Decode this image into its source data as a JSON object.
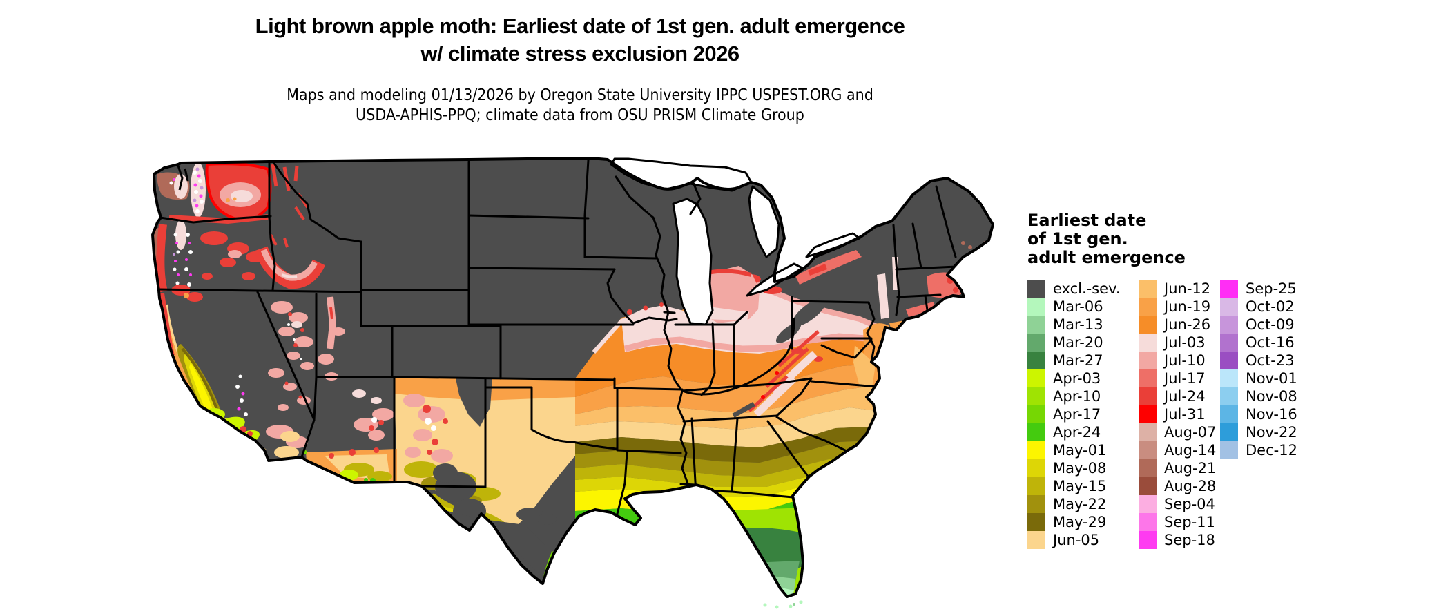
{
  "title": {
    "line1": "Light brown apple moth: Earliest date of 1st gen. adult emergence",
    "line2": "w/ climate stress exclusion 2026"
  },
  "subtitle": {
    "line1": "Maps and modeling 01/13/2026 by Oregon State University IPPC USPEST.ORG and",
    "line2": "USDA-APHIS-PPQ; climate data from OSU PRISM Climate Group"
  },
  "legend": {
    "title_line1": "Earliest date",
    "title_line2": "of 1st gen.",
    "title_line3": "adult emergence",
    "columns": [
      [
        {
          "label": "excl.-sev.",
          "color": "#4D4D4D"
        },
        {
          "label": "Mar-06",
          "color": "#B4F7BC"
        },
        {
          "label": "Mar-13",
          "color": "#8FD296"
        },
        {
          "label": "Mar-20",
          "color": "#63A96C"
        },
        {
          "label": "Mar-27",
          "color": "#38823F"
        },
        {
          "label": "Apr-03",
          "color": "#CCF500"
        },
        {
          "label": "Apr-10",
          "color": "#9FE303"
        },
        {
          "label": "Apr-17",
          "color": "#76D703"
        },
        {
          "label": "Apr-24",
          "color": "#44CB0F"
        },
        {
          "label": "May-01",
          "color": "#FCF500"
        },
        {
          "label": "May-08",
          "color": "#DDD606"
        },
        {
          "label": "May-15",
          "color": "#BFB409"
        },
        {
          "label": "May-22",
          "color": "#A1910D"
        },
        {
          "label": "May-29",
          "color": "#7A6A0A"
        },
        {
          "label": "Jun-05",
          "color": "#FBD58D"
        }
      ],
      [
        {
          "label": "Jun-12",
          "color": "#FBBF69"
        },
        {
          "label": "Jun-19",
          "color": "#F9A147"
        },
        {
          "label": "Jun-26",
          "color": "#F68D28"
        },
        {
          "label": "Jul-03",
          "color": "#F6DCDA"
        },
        {
          "label": "Jul-10",
          "color": "#F2A8A3"
        },
        {
          "label": "Jul-17",
          "color": "#EE6F67"
        },
        {
          "label": "Jul-24",
          "color": "#EA3F38"
        },
        {
          "label": "Jul-31",
          "color": "#FE0000"
        },
        {
          "label": "Aug-07",
          "color": "#DDB1A6"
        },
        {
          "label": "Aug-14",
          "color": "#C98D80"
        },
        {
          "label": "Aug-21",
          "color": "#B06A59"
        },
        {
          "label": "Aug-28",
          "color": "#9A4C3B"
        },
        {
          "label": "Sep-04",
          "color": "#FCAEE1"
        },
        {
          "label": "Sep-11",
          "color": "#FD76E9"
        },
        {
          "label": "Sep-18",
          "color": "#FE3BF1"
        }
      ],
      [
        {
          "label": "Sep-25",
          "color": "#FF2EF5"
        },
        {
          "label": "Oct-02",
          "color": "#D9B8E6"
        },
        {
          "label": "Oct-09",
          "color": "#C795DB"
        },
        {
          "label": "Oct-16",
          "color": "#B172CE"
        },
        {
          "label": "Oct-23",
          "color": "#9A4EC2"
        },
        {
          "label": "Nov-01",
          "color": "#BBE6FA"
        },
        {
          "label": "Nov-08",
          "color": "#8CCEEF"
        },
        {
          "label": "Nov-16",
          "color": "#5CB5E5"
        },
        {
          "label": "Nov-22",
          "color": "#2D9DDA"
        },
        {
          "label": "Dec-12",
          "color": "#A2C1E4"
        }
      ]
    ]
  },
  "map_colors": {
    "excluded": "#4D4D4D",
    "state_border": "#000000",
    "water_background": "#FFFFFF"
  }
}
